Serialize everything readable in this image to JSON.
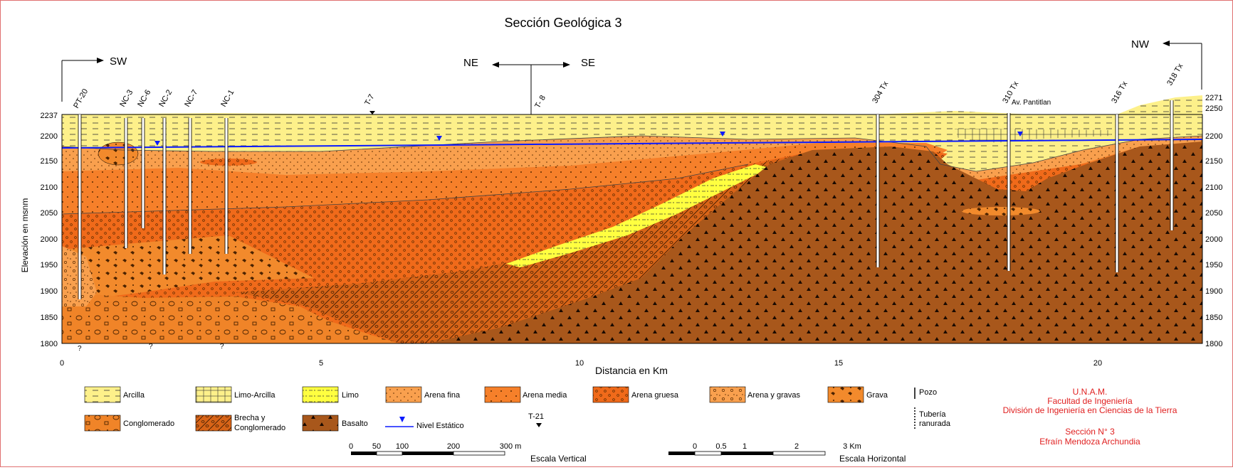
{
  "title": "Sección Geológica 3",
  "directions": {
    "sw": "SW",
    "ne": "NE",
    "se": "SE",
    "nw": "NW"
  },
  "wells": [
    "PT-20",
    "NC-3",
    "NC-6",
    "NC-2",
    "NC-7",
    "NC-1",
    "T-7",
    "T- 8",
    "304 Tx",
    "310 Tx",
    "316 Tx",
    "318 Tx"
  ],
  "place_label": "Av. Pantitlan",
  "axes": {
    "ylabel": "Elevación en msnm",
    "xlabel": "Distancia en Km",
    "y_ticks_left": [
      "2237",
      "2200",
      "2150",
      "2100",
      "2050",
      "2000",
      "1950",
      "1900",
      "1850",
      "1800"
    ],
    "y_ticks_right": [
      "2271",
      "2250",
      "2200",
      "2150",
      "2100",
      "2050",
      "2000",
      "1950",
      "1900",
      "1850",
      "1800"
    ],
    "x_ticks": [
      "0",
      "5",
      "10",
      "15",
      "20"
    ]
  },
  "unknown_marks": [
    "?",
    "?",
    "?"
  ],
  "legend": {
    "arcilla": "Arcilla",
    "limo_arcilla": "Limo-Arcilla",
    "limo": "Limo",
    "arena_fina": "Arena fina",
    "arena_media": "Arena media",
    "arena_gruesa": "Arena gruesa",
    "arena_gravas": "Arena y gravas",
    "grava": "Grava",
    "conglomerado": "Conglomerado",
    "brecha_1": "Brecha y",
    "brecha_2": "Conglomerado",
    "basalto": "Basalto",
    "nivel": "Nivel Estático",
    "marker": "T-21",
    "pozo": "Pozo",
    "tuberia_1": "Tubería",
    "tuberia_2": "ranurada"
  },
  "scale_vertical": {
    "ticks": [
      "0",
      "50",
      "100",
      "200",
      "300 m"
    ],
    "label": "Escala Vertical"
  },
  "scale_horizontal": {
    "ticks": [
      "0",
      "0.5",
      "1",
      "2",
      "3 Km"
    ],
    "label": "Escala Horizontal"
  },
  "credits": {
    "line1": "U.N.A.M.",
    "line2": "Facultad de Ingeniería",
    "line3": "División de Ingeniería en Ciencias de la Tierra",
    "line4": "Sección N° 3",
    "line5": "Efraín Mendoza Archundia"
  },
  "colors": {
    "arcilla": "#fdf08a",
    "limo": "#ffff40",
    "arena_fina": "#f9a04e",
    "arena_media": "#f6802a",
    "arena_gruesa": "#f06a1a",
    "grava": "#f28a2c",
    "conglomerado": "#f08428",
    "brecha": "#d86418",
    "basalto": "#a8571b",
    "nivel": "#0a1aff",
    "credits": "#e02020"
  }
}
